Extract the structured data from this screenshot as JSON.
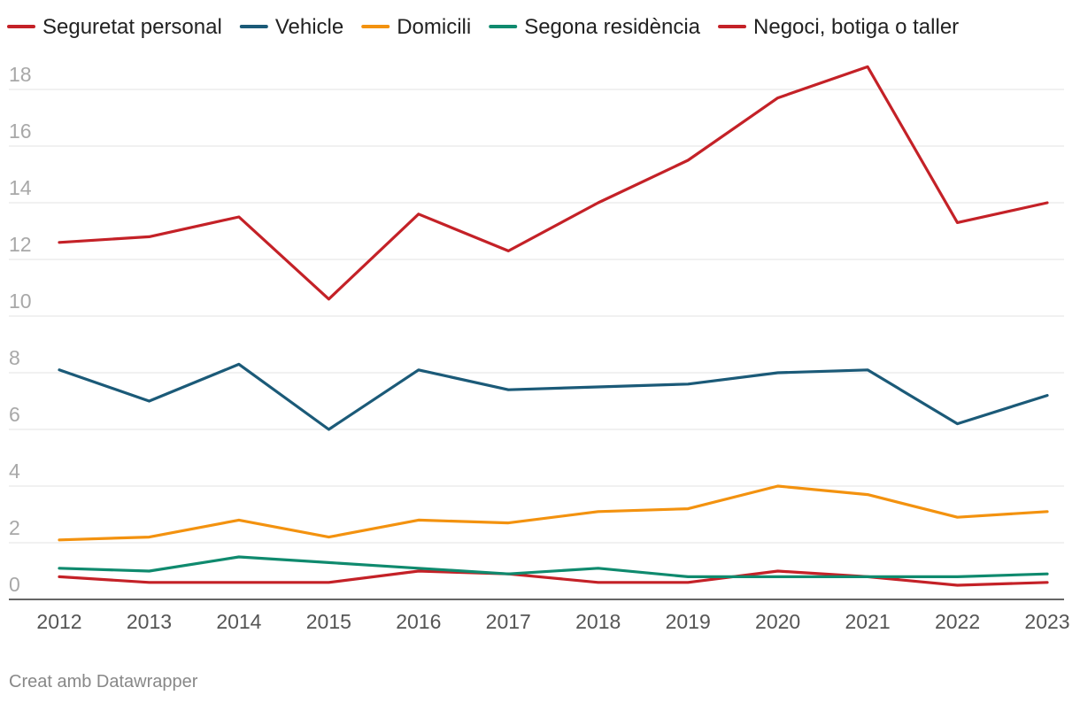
{
  "chart_data": {
    "type": "line",
    "title": "",
    "xlabel": "",
    "ylabel": "",
    "x": [
      2012,
      2013,
      2014,
      2015,
      2016,
      2017,
      2018,
      2019,
      2020,
      2021,
      2022,
      2023
    ],
    "ylim": [
      0,
      18
    ],
    "yticks": [
      0,
      2,
      4,
      6,
      8,
      10,
      12,
      14,
      16,
      18
    ],
    "grid": true,
    "legend_position": "top-left",
    "series": [
      {
        "name": "Seguretat personal",
        "color": "#c42127",
        "values": [
          12.6,
          12.8,
          13.5,
          10.6,
          13.6,
          12.3,
          14.0,
          15.5,
          17.7,
          18.8,
          13.3,
          14.0
        ]
      },
      {
        "name": "Vehicle",
        "color": "#1b5a78",
        "values": [
          8.1,
          7.0,
          8.3,
          6.0,
          8.1,
          7.4,
          7.5,
          7.6,
          8.0,
          8.1,
          6.2,
          7.2
        ]
      },
      {
        "name": "Domicili",
        "color": "#f3920f",
        "values": [
          2.1,
          2.2,
          2.8,
          2.2,
          2.8,
          2.7,
          3.1,
          3.2,
          4.0,
          3.7,
          2.9,
          3.1
        ]
      },
      {
        "name": "Segona residència",
        "color": "#0f8a6e",
        "values": [
          1.1,
          1.0,
          1.5,
          1.3,
          1.1,
          0.9,
          1.1,
          0.8,
          0.8,
          0.8,
          0.8,
          0.9
        ]
      },
      {
        "name": "Negoci, botiga o taller",
        "color": "#c42127",
        "values": [
          0.8,
          0.6,
          0.6,
          0.6,
          1.0,
          0.9,
          0.6,
          0.6,
          1.0,
          0.8,
          0.5,
          0.6
        ]
      }
    ]
  },
  "footer": {
    "credit": "Creat amb Datawrapper"
  }
}
